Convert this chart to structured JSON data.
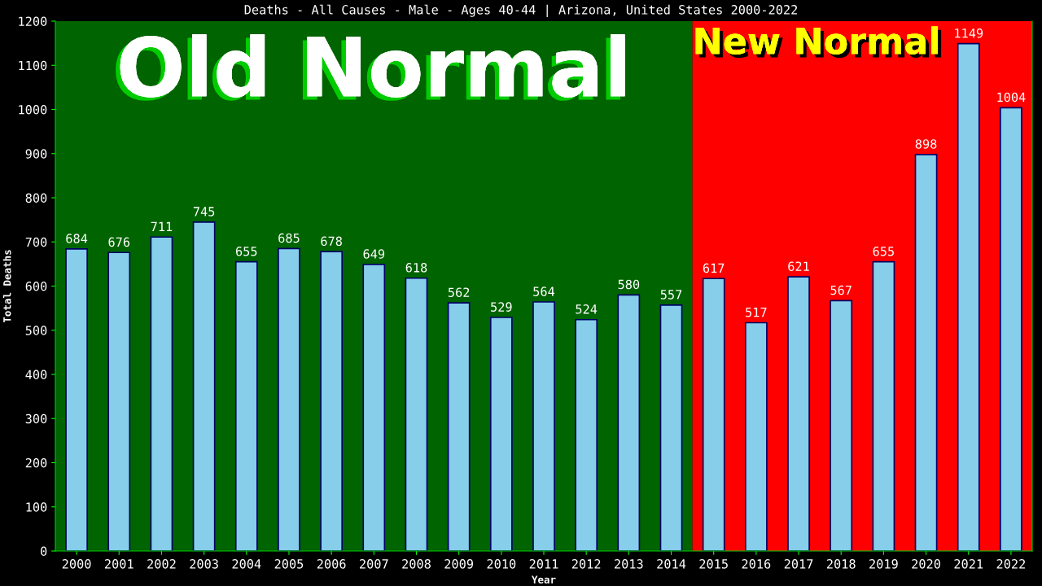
{
  "chart_data": {
    "type": "bar",
    "title": "Deaths - All Causes - Male - Ages 40-44 | Arizona, United States 2000-2022",
    "xlabel": "Year",
    "ylabel": "Total Deaths",
    "categories": [
      "2000",
      "2001",
      "2002",
      "2003",
      "2004",
      "2005",
      "2006",
      "2007",
      "2008",
      "2009",
      "2010",
      "2011",
      "2012",
      "2013",
      "2014",
      "2015",
      "2016",
      "2017",
      "2018",
      "2019",
      "2020",
      "2021",
      "2022"
    ],
    "values": [
      684,
      676,
      711,
      745,
      655,
      685,
      678,
      649,
      618,
      562,
      529,
      564,
      524,
      580,
      557,
      617,
      517,
      621,
      567,
      655,
      898,
      1149,
      1004
    ],
    "color": "#87ceeb",
    "data_labels": true,
    "ylim": [
      0,
      1200
    ],
    "yticks": [
      0,
      100,
      200,
      300,
      400,
      500,
      600,
      700,
      800,
      900,
      1000,
      1100,
      1200
    ],
    "grid": false,
    "legend": false,
    "bands": [
      {
        "axis": "x",
        "from": "2000",
        "to": "2014",
        "label": "Old Normal",
        "color": "#006400"
      },
      {
        "axis": "x",
        "from": "2015",
        "to": "2022",
        "label": "New Normal",
        "color": "#ff0000"
      }
    ]
  }
}
